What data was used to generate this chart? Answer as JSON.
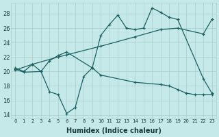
{
  "xlabel": "Humidex (Indice chaleur)",
  "background_color": "#c5e8e8",
  "grid_color": "#aacece",
  "line_color": "#1a6060",
  "xlim": [
    -0.5,
    23.5
  ],
  "ylim": [
    13.5,
    29.5
  ],
  "yticks": [
    14,
    16,
    18,
    20,
    22,
    24,
    26,
    28
  ],
  "xticks": [
    0,
    1,
    2,
    3,
    4,
    5,
    6,
    7,
    8,
    9,
    10,
    11,
    12,
    13,
    14,
    15,
    16,
    17,
    18,
    19,
    20,
    21,
    22,
    23
  ],
  "line1_x": [
    0,
    1,
    2,
    3,
    4,
    5,
    6,
    9,
    10,
    11,
    12,
    13,
    14,
    15,
    16,
    17,
    18,
    19,
    22,
    23
  ],
  "line1_y": [
    20.5,
    20.0,
    21.0,
    20.0,
    21.5,
    22.2,
    22.7,
    20.5,
    25.0,
    26.5,
    27.8,
    26.0,
    25.8,
    26.0,
    28.8,
    28.2,
    27.5,
    27.2,
    19.0,
    17.0
  ],
  "line2_x": [
    0,
    2,
    5,
    6,
    10,
    14,
    17,
    19,
    22,
    23
  ],
  "line2_y": [
    20.2,
    21.0,
    22.0,
    22.3,
    23.5,
    24.8,
    25.8,
    26.0,
    25.2,
    27.2
  ],
  "line3_x": [
    0,
    1,
    3,
    4,
    5,
    6,
    7,
    8,
    9,
    10,
    14,
    17,
    18,
    19,
    20,
    21,
    22,
    23
  ],
  "line3_y": [
    20.3,
    19.9,
    20.0,
    17.2,
    16.8,
    14.2,
    15.0,
    19.3,
    20.5,
    19.5,
    18.5,
    18.2,
    18.0,
    17.5,
    17.0,
    16.8,
    16.8,
    16.8
  ]
}
